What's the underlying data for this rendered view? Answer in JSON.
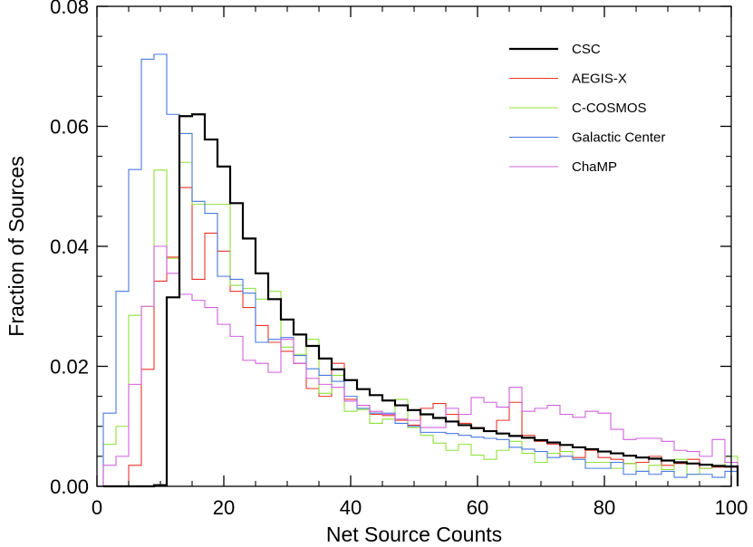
{
  "chart_data": {
    "type": "line",
    "title": "",
    "xlabel": "Net Source Counts",
    "ylabel": "Fraction of Sources",
    "xlim": [
      0,
      100
    ],
    "ylim": [
      0,
      0.08
    ],
    "grid": false,
    "legend_position": "top-right",
    "x_ticks": [
      0,
      20,
      40,
      60,
      80,
      100
    ],
    "x_tick_labels": [
      "0",
      "20",
      "40",
      "60",
      "80",
      "100"
    ],
    "y_ticks": [
      0.0,
      0.02,
      0.04,
      0.06,
      0.08
    ],
    "y_tick_labels": [
      "0.00",
      "0.02",
      "0.04",
      "0.06",
      "0.08"
    ],
    "bin_width": 2,
    "bin_edges_start": 1,
    "series": [
      {
        "name": "CSC",
        "color": "#000000",
        "width": 2.2,
        "values": [
          0.0,
          0.0,
          0.0,
          0.0,
          0.0002,
          0.0315,
          0.0617,
          0.062,
          0.0578,
          0.0533,
          0.0472,
          0.0413,
          0.0355,
          0.0312,
          0.0278,
          0.0253,
          0.0234,
          0.0213,
          0.0195,
          0.0177,
          0.0162,
          0.0152,
          0.0143,
          0.0135,
          0.0127,
          0.012,
          0.0114,
          0.0108,
          0.0102,
          0.0097,
          0.0092,
          0.0088,
          0.0084,
          0.0081,
          0.0077,
          0.0073,
          0.0069,
          0.0065,
          0.0062,
          0.0058,
          0.0055,
          0.0051,
          0.0048,
          0.0046,
          0.0043,
          0.004,
          0.0038,
          0.0036,
          0.0034,
          0.0033
        ]
      },
      {
        "name": "AEGIS-X",
        "color": "#e8342a",
        "width": 1.1,
        "values": [
          0.0,
          0.0,
          0.0035,
          0.0195,
          0.0342,
          0.0382,
          0.0498,
          0.0345,
          0.0422,
          0.0392,
          0.0325,
          0.0298,
          0.0268,
          0.024,
          0.0225,
          0.0205,
          0.0163,
          0.015,
          0.0205,
          0.0145,
          0.0135,
          0.012,
          0.0118,
          0.011,
          0.0102,
          0.013,
          0.0138,
          0.012,
          0.0105,
          0.0098,
          0.0092,
          0.011,
          0.014,
          0.0085,
          0.0075,
          0.007,
          0.005,
          0.0048,
          0.006,
          0.0048,
          0.0045,
          0.0038,
          0.004,
          0.005,
          0.0035,
          0.0038,
          0.0045,
          0.003,
          0.0032,
          0.0032
        ]
      },
      {
        "name": "C-COSMOS",
        "color": "#8fe03a",
        "width": 1.1,
        "values": [
          0.007,
          0.01,
          0.0285,
          0.03,
          0.0527,
          0.038,
          0.054,
          0.047,
          0.047,
          0.047,
          0.0335,
          0.033,
          0.0312,
          0.0325,
          0.0232,
          0.022,
          0.0245,
          0.0155,
          0.0185,
          0.0125,
          0.0128,
          0.0105,
          0.0112,
          0.0145,
          0.0098,
          0.0085,
          0.0072,
          0.006,
          0.007,
          0.0052,
          0.0045,
          0.006,
          0.0075,
          0.0055,
          0.004,
          0.0055,
          0.0058,
          0.0045,
          0.004,
          0.004,
          0.003,
          0.0038,
          0.0025,
          0.0035,
          0.0028,
          0.0045,
          0.002,
          0.003,
          0.0035,
          0.005
        ]
      },
      {
        "name": "Galactic Center",
        "color": "#4878e0",
        "width": 1.1,
        "values": [
          0.0122,
          0.0325,
          0.0528,
          0.0712,
          0.072,
          0.062,
          0.0588,
          0.0475,
          0.0455,
          0.035,
          0.0345,
          0.0322,
          0.024,
          0.0245,
          0.0248,
          0.0218,
          0.0196,
          0.0185,
          0.0175,
          0.015,
          0.013,
          0.0122,
          0.0122,
          0.0105,
          0.01,
          0.009,
          0.009,
          0.0088,
          0.0085,
          0.0082,
          0.008,
          0.0078,
          0.0065,
          0.0062,
          0.0058,
          0.0048,
          0.005,
          0.0045,
          0.003,
          0.003,
          0.004,
          0.002,
          0.0025,
          0.002,
          0.0025,
          0.0015,
          0.002,
          0.002,
          0.0015,
          0.0025
        ]
      },
      {
        "name": "ChaMP",
        "color": "#d060dc",
        "width": 1.1,
        "values": [
          0.0035,
          0.005,
          0.017,
          0.03,
          0.04,
          0.0355,
          0.032,
          0.031,
          0.0298,
          0.027,
          0.025,
          0.021,
          0.0205,
          0.019,
          0.0245,
          0.0205,
          0.018,
          0.017,
          0.0165,
          0.0142,
          0.0135,
          0.0125,
          0.012,
          0.0112,
          0.011,
          0.0098,
          0.0098,
          0.013,
          0.012,
          0.0148,
          0.014,
          0.0132,
          0.0165,
          0.0125,
          0.013,
          0.0135,
          0.012,
          0.0115,
          0.0125,
          0.0122,
          0.0095,
          0.0078,
          0.008,
          0.008,
          0.0075,
          0.006,
          0.0058,
          0.005,
          0.0078,
          0.004
        ]
      }
    ]
  }
}
